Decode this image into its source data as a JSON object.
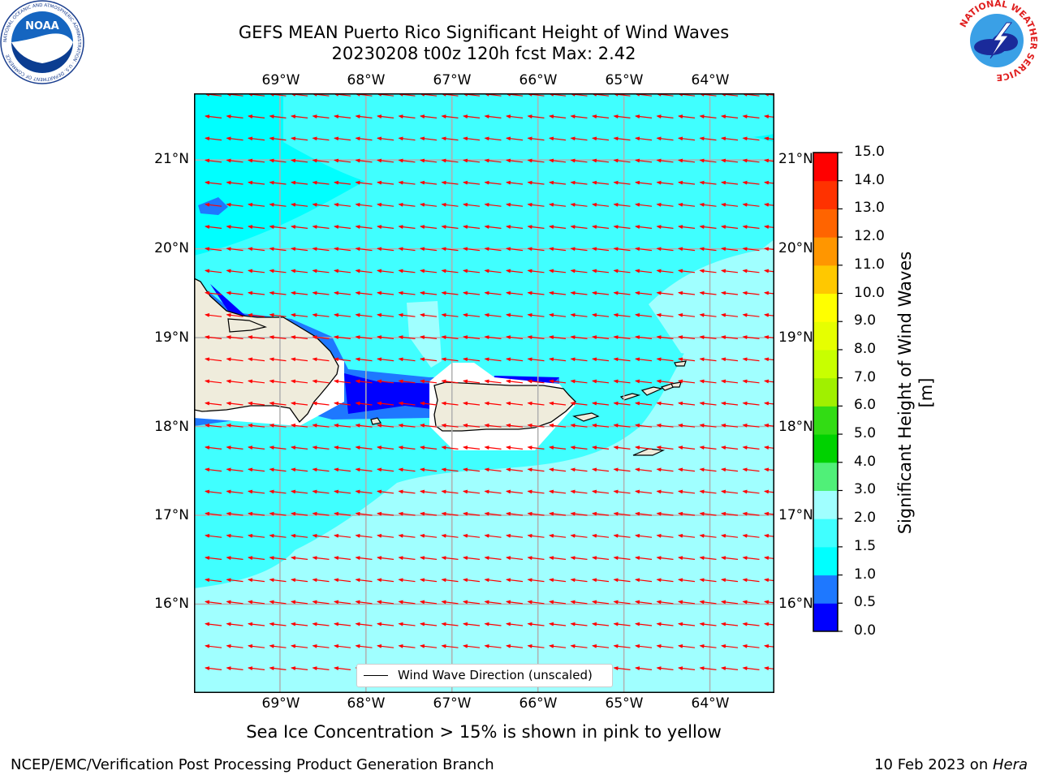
{
  "header": {
    "title_line1": "GEFS MEAN Puerto Rico Significant Height of Wind Waves",
    "title_line2": "20230208 t00z 120h fcst   Max: 2.42"
  },
  "logos": {
    "noaa": "NOAA",
    "noaa_ring": "NATIONAL OCEANIC AND ATMOSPHERIC ADMINISTRATION · U.S. DEPARTMENT OF COMMERCE",
    "nws_ring": "NATIONAL WEATHER SERVICE"
  },
  "map": {
    "lon_labels": [
      "69°W",
      "68°W",
      "67°W",
      "66°W",
      "65°W",
      "64°W"
    ],
    "lat_labels": [
      "21°N",
      "20°N",
      "19°N",
      "18°N",
      "17°N",
      "16°N"
    ],
    "extent": {
      "lon_min": -70.0,
      "lon_max": -63.25,
      "lat_min": 15.0,
      "lat_max": 21.75
    },
    "gridlines": true,
    "legend_label": "Wind Wave Direction (unscaled)",
    "arrow_color": "#ff0000",
    "land_color": "#efecdc",
    "wave_direction": "westward (toward west, slightly north of west)"
  },
  "colorbar": {
    "title": "Significant Height of Wind Waves [m]",
    "tick_labels": [
      "0.0",
      "0.5",
      "1.0",
      "1.5",
      "2.0",
      "3.0",
      "4.0",
      "5.0",
      "6.0",
      "7.0",
      "8.0",
      "9.0",
      "10.0",
      "11.0",
      "12.0",
      "13.0",
      "14.0",
      "15.0"
    ],
    "colors": [
      "#0000ff",
      "#1e78ff",
      "#00ffff",
      "#40ffff",
      "#a0ffff",
      "#50f078",
      "#00d200",
      "#32dc14",
      "#a0f000",
      "#c8ff00",
      "#e6ff00",
      "#ffff00",
      "#ffc800",
      "#ff9600",
      "#ff6400",
      "#ff3200",
      "#ff0000"
    ]
  },
  "footer": {
    "ice_note": "Sea Ice Concentration > 15% is shown in pink to yellow",
    "org": "NCEP/EMC/Verification Post Processing Product Generation Branch",
    "date": "10 Feb 2023 on ",
    "machine": "Hera"
  }
}
